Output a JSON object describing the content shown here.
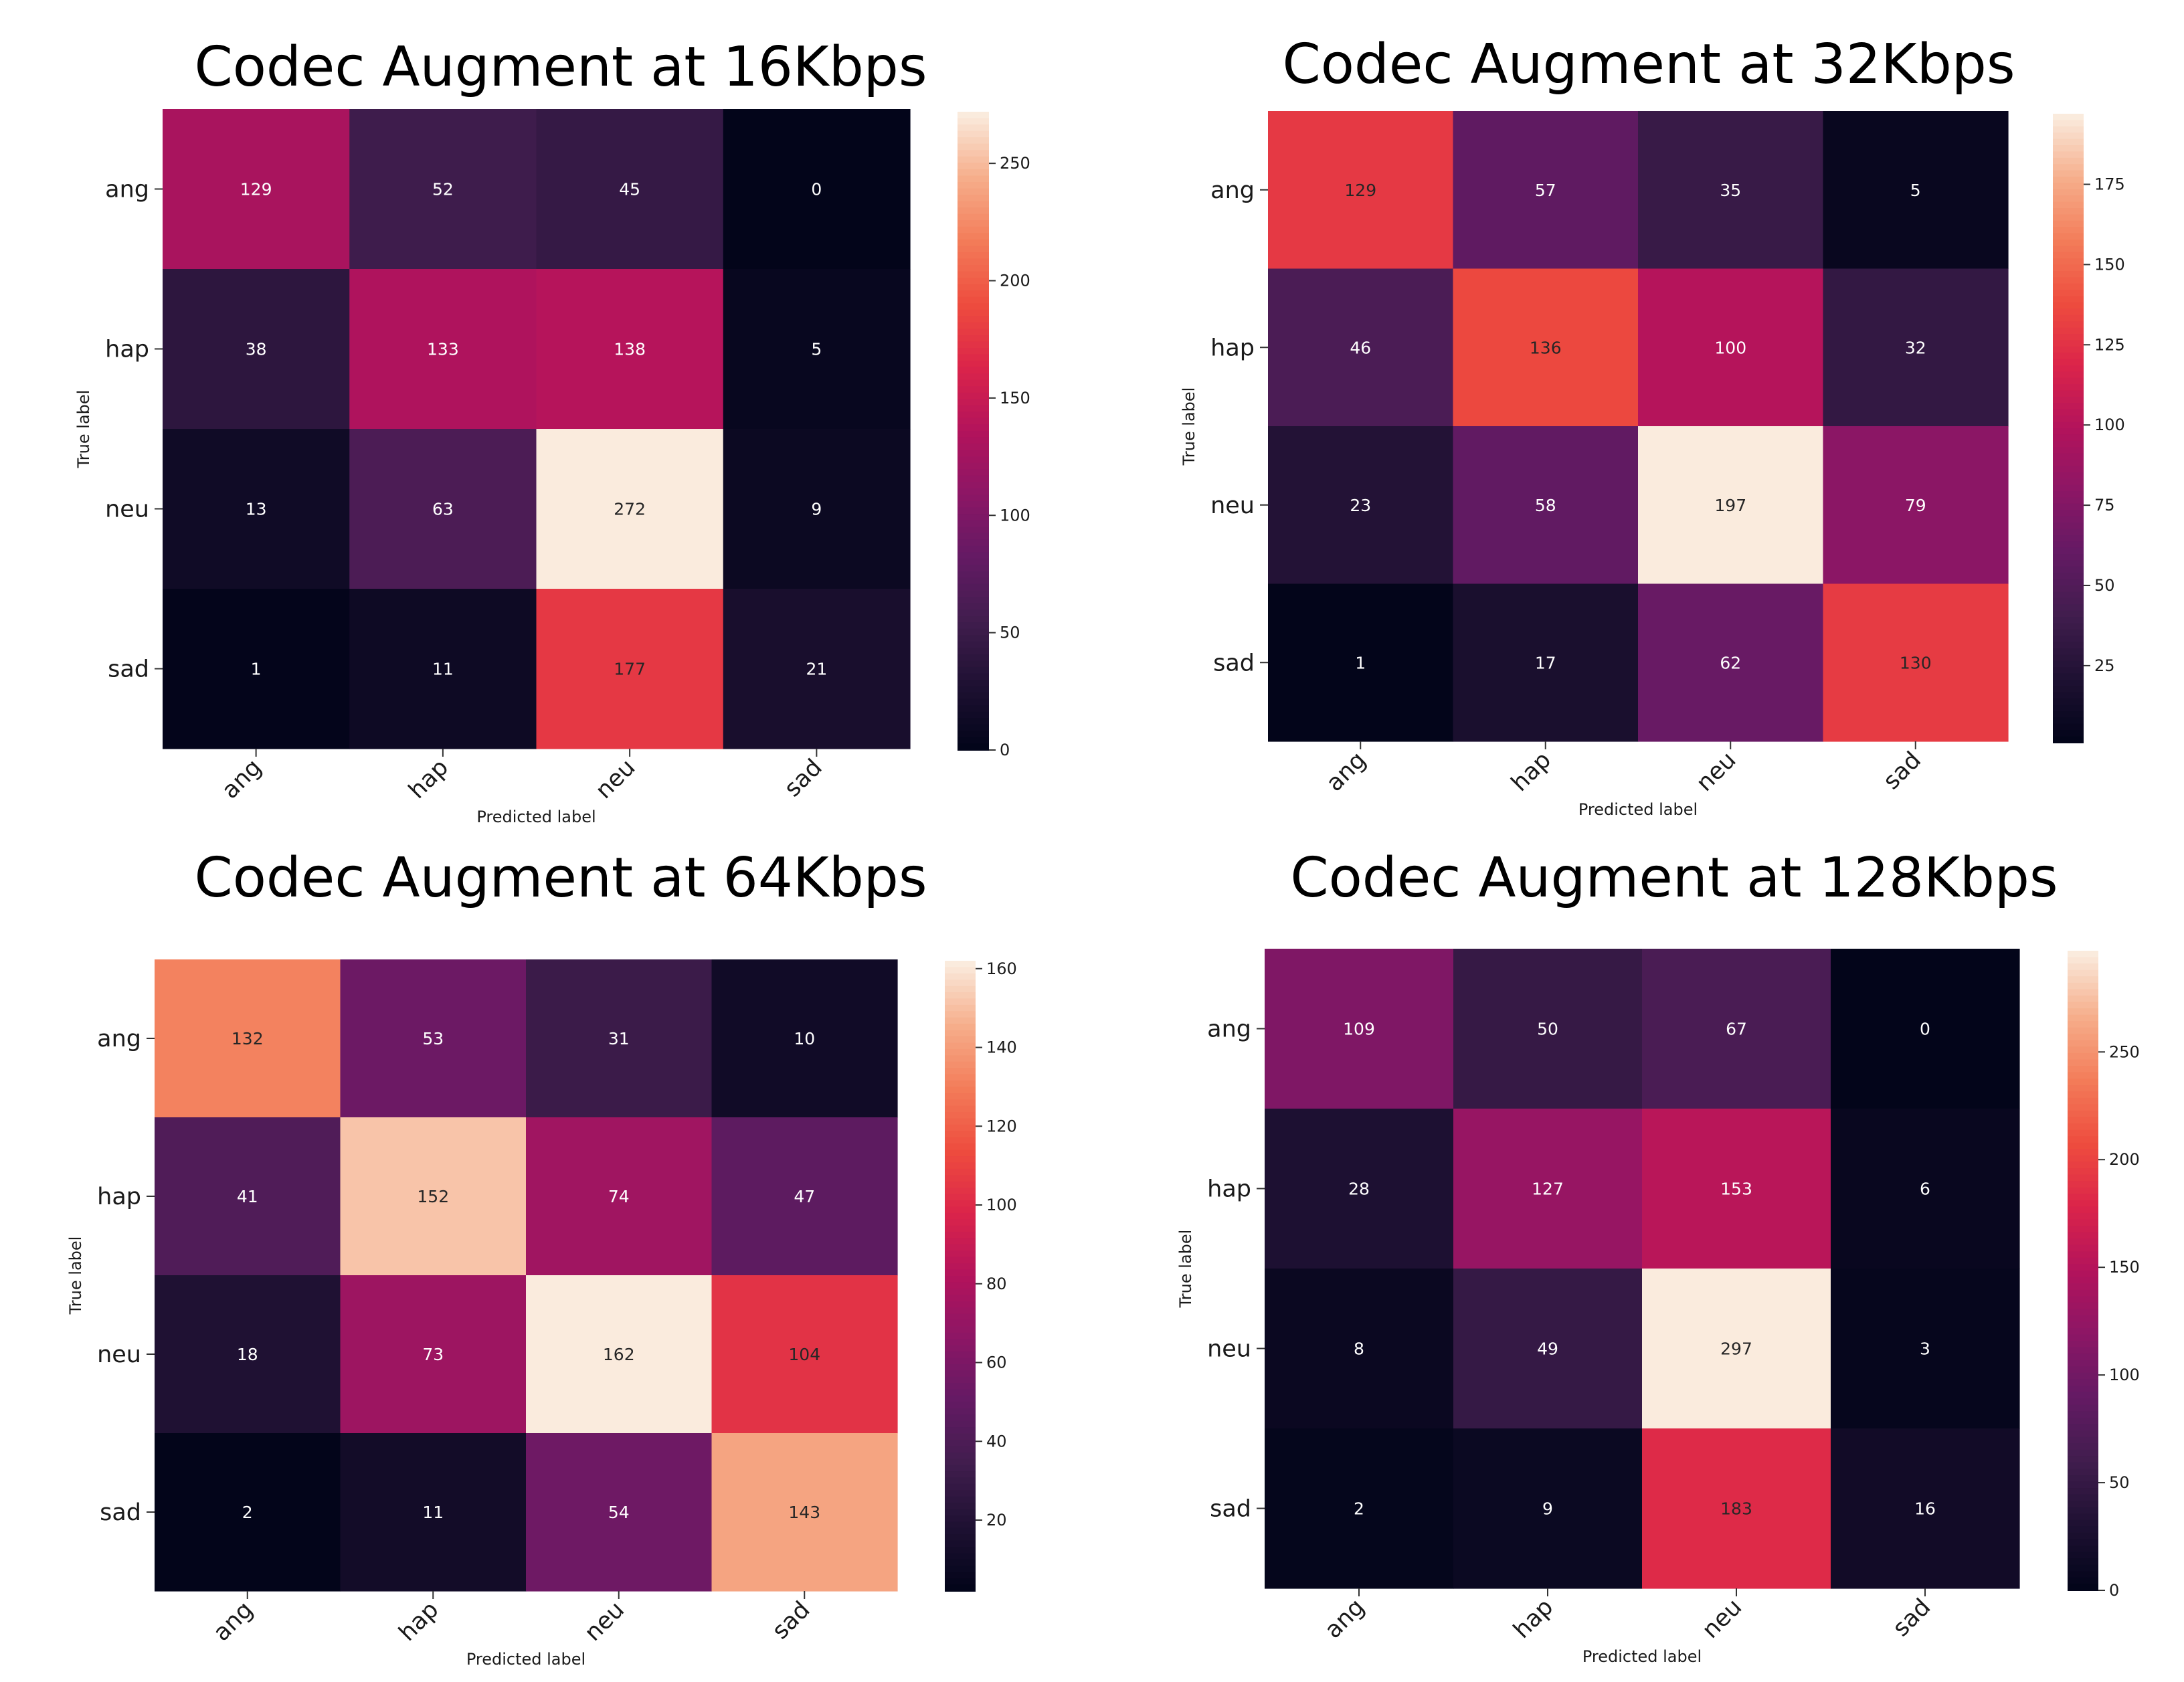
{
  "chart_data": [
    {
      "type": "heatmap",
      "title": "Codec Augment at 16Kbps",
      "xlabel": "Predicted label",
      "ylabel": "True label",
      "x_categories": [
        "ang",
        "hap",
        "neu",
        "sad"
      ],
      "y_categories": [
        "ang",
        "hap",
        "neu",
        "sad"
      ],
      "values": [
        [
          129,
          52,
          45,
          0
        ],
        [
          38,
          133,
          138,
          5
        ],
        [
          13,
          63,
          272,
          9
        ],
        [
          1,
          11,
          177,
          21
        ]
      ],
      "colorbar": {
        "range": [
          0,
          272
        ],
        "ticks": [
          0,
          50,
          100,
          150,
          200,
          250
        ]
      },
      "colormap": "rocket",
      "legend": "colorbar-right"
    },
    {
      "type": "heatmap",
      "title": "Codec Augment at 32Kbps",
      "xlabel": "Predicted label",
      "ylabel": "True label",
      "x_categories": [
        "ang",
        "hap",
        "neu",
        "sad"
      ],
      "y_categories": [
        "ang",
        "hap",
        "neu",
        "sad"
      ],
      "values": [
        [
          129,
          57,
          35,
          5
        ],
        [
          46,
          136,
          100,
          32
        ],
        [
          23,
          58,
          197,
          79
        ],
        [
          1,
          17,
          62,
          130
        ]
      ],
      "colorbar": {
        "range": [
          1,
          197
        ],
        "ticks": [
          25,
          50,
          75,
          100,
          125,
          150,
          175
        ]
      },
      "colormap": "rocket",
      "legend": "colorbar-right"
    },
    {
      "type": "heatmap",
      "title": "Codec Augment at 64Kbps",
      "xlabel": "Predicted label",
      "ylabel": "True label",
      "x_categories": [
        "ang",
        "hap",
        "neu",
        "sad"
      ],
      "y_categories": [
        "ang",
        "hap",
        "neu",
        "sad"
      ],
      "values": [
        [
          132,
          53,
          31,
          10
        ],
        [
          41,
          152,
          74,
          47
        ],
        [
          18,
          73,
          162,
          104
        ],
        [
          2,
          11,
          54,
          143
        ]
      ],
      "colorbar": {
        "range": [
          2,
          162
        ],
        "ticks": [
          20,
          40,
          60,
          80,
          100,
          120,
          140,
          160
        ]
      },
      "colormap": "rocket",
      "legend": "colorbar-right"
    },
    {
      "type": "heatmap",
      "title": "Codec Augment at 128Kbps",
      "xlabel": "Predicted label",
      "ylabel": "True label",
      "x_categories": [
        "ang",
        "hap",
        "neu",
        "sad"
      ],
      "y_categories": [
        "ang",
        "hap",
        "neu",
        "sad"
      ],
      "values": [
        [
          109,
          50,
          67,
          0
        ],
        [
          28,
          127,
          153,
          6
        ],
        [
          8,
          49,
          297,
          3
        ],
        [
          2,
          9,
          183,
          16
        ]
      ],
      "colorbar": {
        "range": [
          0,
          297
        ],
        "ticks": [
          0,
          50,
          100,
          150,
          200,
          250
        ]
      },
      "colormap": "rocket",
      "legend": "colorbar-right"
    }
  ]
}
